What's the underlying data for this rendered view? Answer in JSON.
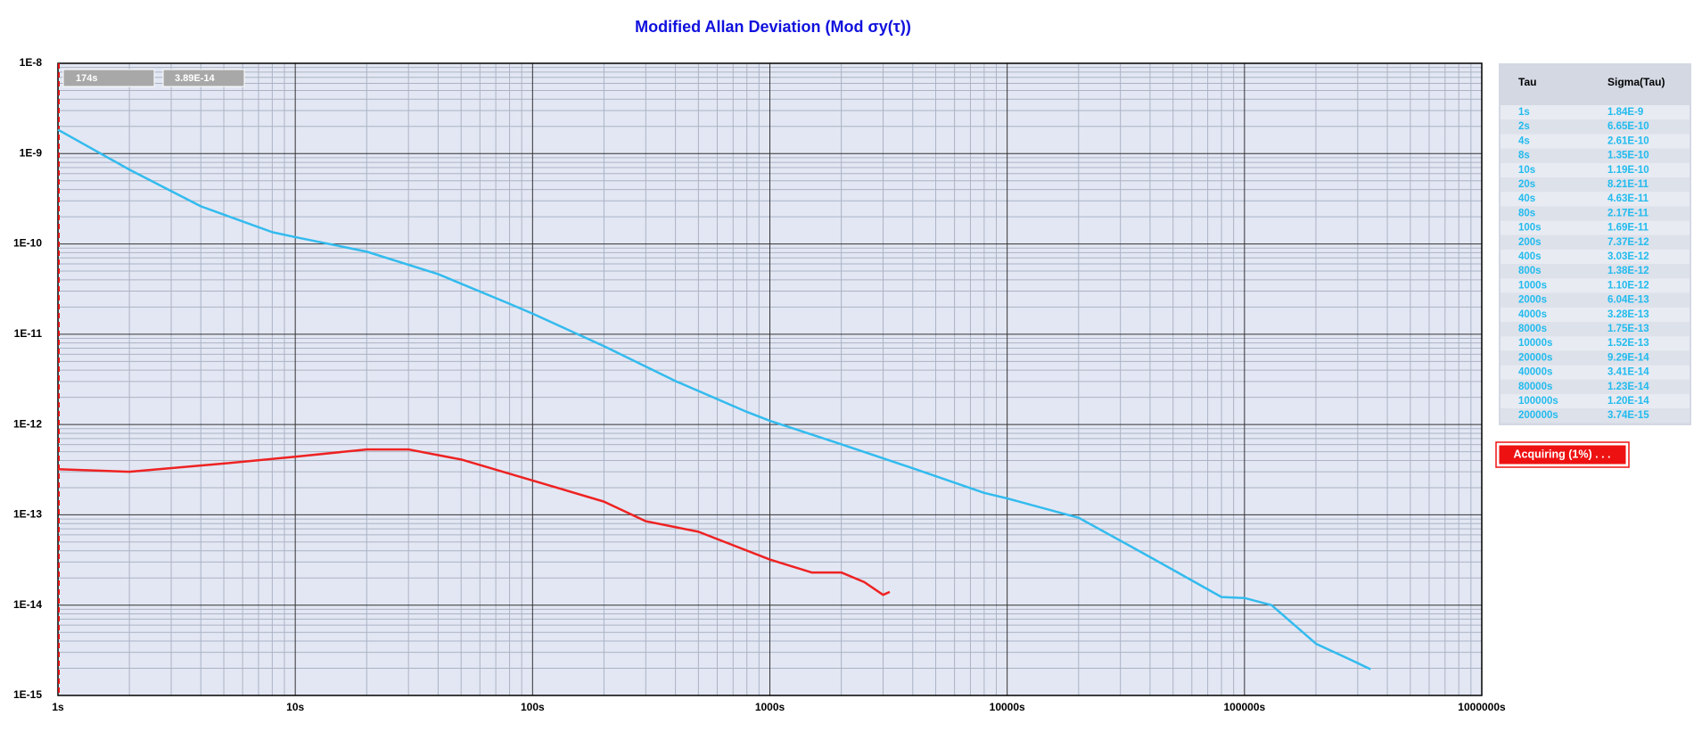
{
  "chart_data": {
    "type": "line",
    "title": "Modified Allan Deviation (Mod σy(τ))",
    "xscale": "log",
    "yscale": "log",
    "grid": true,
    "xlim": [
      1,
      1000000
    ],
    "xticks": [
      {
        "value": 1,
        "label": "1s"
      },
      {
        "value": 10,
        "label": "10s"
      },
      {
        "value": 100,
        "label": "100s"
      },
      {
        "value": 1000,
        "label": "1000s"
      },
      {
        "value": 10000,
        "label": "10000s"
      },
      {
        "value": 100000,
        "label": "100000s"
      },
      {
        "value": 1000000,
        "label": "1000000s"
      }
    ],
    "ylim": [
      1e-15,
      1e-08
    ],
    "yticks": [
      {
        "value": 1e-15,
        "label": "1E-15"
      },
      {
        "value": 1e-14,
        "label": "1E-14"
      },
      {
        "value": 1e-13,
        "label": "1E-13"
      },
      {
        "value": 1e-12,
        "label": "1E-12"
      },
      {
        "value": 1e-11,
        "label": "1E-11"
      },
      {
        "value": 1e-10,
        "label": "1E-10"
      },
      {
        "value": 1e-09,
        "label": "1E-9"
      },
      {
        "value": 1e-08,
        "label": "1E-8"
      }
    ],
    "series": [
      {
        "color": "#33bbee",
        "x": [
          1,
          2,
          4,
          8,
          10,
          20,
          40,
          80,
          100,
          200,
          400,
          800,
          1000,
          2000,
          4000,
          8000,
          10000,
          20000,
          40000,
          80000,
          100000,
          130000,
          200000,
          270000,
          340000
        ],
        "values": [
          1.84e-09,
          6.65e-10,
          2.61e-10,
          1.35e-10,
          1.19e-10,
          8.21e-11,
          4.63e-11,
          2.17e-11,
          1.69e-11,
          7.37e-12,
          3.03e-12,
          1.38e-12,
          1.1e-12,
          6.04e-13,
          3.28e-13,
          1.75e-13,
          1.52e-13,
          9.29e-14,
          3.41e-14,
          1.23e-14,
          1.2e-14,
          1e-14,
          3.74e-15,
          2.6e-15,
          1.95e-15
        ]
      },
      {
        "color": "#ee2222",
        "x": [
          1,
          2,
          5,
          10,
          20,
          30,
          50,
          100,
          200,
          300,
          500,
          1000,
          1500,
          2000,
          2500,
          3000,
          3200
        ],
        "values": [
          3.2e-13,
          3e-13,
          3.7e-13,
          4.4e-13,
          5.3e-13,
          5.3e-13,
          4.1e-13,
          2.4e-13,
          1.4e-13,
          8.5e-14,
          6.5e-14,
          3.2e-14,
          2.3e-14,
          2.3e-14,
          1.8e-14,
          1.3e-14,
          1.4e-14
        ]
      }
    ]
  },
  "cursor": {
    "tau": "174s",
    "sigma": "3.89E-14"
  },
  "table": {
    "columns": [
      "Tau",
      "Sigma(Tau)"
    ],
    "rows": [
      [
        "1s",
        "1.84E-9"
      ],
      [
        "2s",
        "6.65E-10"
      ],
      [
        "4s",
        "2.61E-10"
      ],
      [
        "8s",
        "1.35E-10"
      ],
      [
        "10s",
        "1.19E-10"
      ],
      [
        "20s",
        "8.21E-11"
      ],
      [
        "40s",
        "4.63E-11"
      ],
      [
        "80s",
        "2.17E-11"
      ],
      [
        "100s",
        "1.69E-11"
      ],
      [
        "200s",
        "7.37E-12"
      ],
      [
        "400s",
        "3.03E-12"
      ],
      [
        "800s",
        "1.38E-12"
      ],
      [
        "1000s",
        "1.10E-12"
      ],
      [
        "2000s",
        "6.04E-13"
      ],
      [
        "4000s",
        "3.28E-13"
      ],
      [
        "8000s",
        "1.75E-13"
      ],
      [
        "10000s",
        "1.52E-13"
      ],
      [
        "20000s",
        "9.29E-14"
      ],
      [
        "40000s",
        "3.41E-14"
      ],
      [
        "80000s",
        "1.23E-14"
      ],
      [
        "100000s",
        "1.20E-14"
      ],
      [
        "200000s",
        "3.74E-15"
      ]
    ]
  },
  "status": "Acquiring (1%) . . ."
}
